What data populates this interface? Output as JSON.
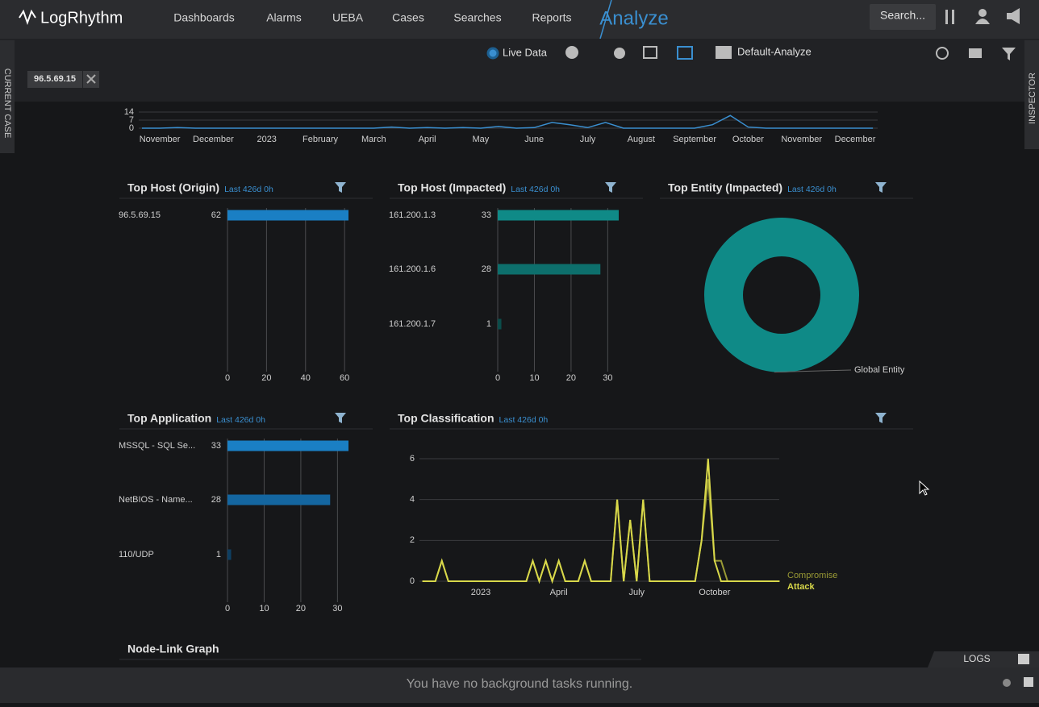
{
  "nav": {
    "brand": "LogRhythm",
    "items": [
      "Dashboards",
      "Alarms",
      "UEBA",
      "Cases",
      "Searches",
      "Reports"
    ],
    "active": "Analyze",
    "search": "Search..."
  },
  "side_tabs": {
    "left": "CURRENT CASE",
    "right": "INSPECTOR"
  },
  "toolbar": {
    "live": "Live Data",
    "layout": "Default-Analyze"
  },
  "filter_chip": "96.5.69.15",
  "timeline": {
    "type": "line",
    "color": "#3a8fd0",
    "ylim": [
      0,
      14
    ],
    "yticks": [
      0,
      7,
      14
    ],
    "categories": [
      null,
      "November",
      null,
      null,
      "December",
      null,
      null,
      "2023",
      null,
      null,
      "February",
      null,
      null,
      "March",
      null,
      null,
      "April",
      null,
      null,
      "May",
      null,
      null,
      "June",
      null,
      null,
      "July",
      null,
      null,
      "August",
      null,
      null,
      "September",
      null,
      null,
      "October",
      null,
      null,
      "November",
      null,
      null,
      "December",
      null
    ],
    "values": [
      0,
      0,
      0.5,
      0,
      0,
      0,
      0,
      0,
      0,
      0,
      0,
      0,
      0,
      0,
      1,
      0,
      0.5,
      0,
      0.5,
      0,
      1.5,
      0,
      0.5,
      5,
      3,
      0.5,
      5,
      0,
      0,
      0,
      0,
      0,
      3,
      11,
      1,
      0,
      0,
      0,
      0,
      0,
      0,
      0
    ]
  },
  "panels": [
    {
      "title": "Top Host (Origin)",
      "subtitle": "Last 426d 0h",
      "chart": {
        "type": "bar",
        "categories": [
          "96.5.69.15"
        ],
        "values": [
          62
        ],
        "colors": [
          "#1a7fc4"
        ],
        "xlim": [
          0,
          62
        ],
        "xticks": [
          0,
          20,
          40,
          60
        ]
      }
    },
    {
      "title": "Top Host (Impacted)",
      "subtitle": "Last 426d 0h",
      "chart": {
        "type": "bar",
        "categories": [
          "161.200.1.3",
          "161.200.1.6",
          "161.200.1.7"
        ],
        "values": [
          33,
          28,
          1
        ],
        "colors": [
          "#0f8a87",
          "#0d6f6c",
          "#0b4c4a"
        ],
        "xlim": [
          0,
          33
        ],
        "xticks": [
          0,
          10,
          20,
          30
        ]
      }
    },
    {
      "title": "Top Entity (Impacted)",
      "subtitle": "Last 426d 0h",
      "chart": {
        "type": "pie",
        "donut": true,
        "categories": [
          "Global Entity"
        ],
        "values": [
          62
        ],
        "colors": [
          "#0f8a87"
        ]
      }
    },
    {
      "title": "Top Application",
      "subtitle": "Last 426d 0h",
      "chart": {
        "type": "bar",
        "categories": [
          "MSSQL - SQL Se...",
          "NetBIOS - Name...",
          "110/UDP"
        ],
        "values": [
          33,
          28,
          1
        ],
        "colors": [
          "#1a7fc4",
          "#1466a0",
          "#0e3f62"
        ],
        "xlim": [
          0,
          33
        ],
        "xticks": [
          0,
          10,
          20,
          30
        ]
      }
    },
    {
      "title": "Top Classification",
      "subtitle": "Last 426d 0h",
      "chart": {
        "type": "line",
        "ylim": [
          0,
          6
        ],
        "yticks": [
          0,
          2,
          4,
          6
        ],
        "categories": [
          null,
          null,
          null,
          null,
          null,
          null,
          null,
          null,
          null,
          "2023",
          null,
          null,
          null,
          null,
          null,
          null,
          null,
          null,
          null,
          null,
          null,
          "April",
          null,
          null,
          null,
          null,
          null,
          null,
          null,
          null,
          null,
          null,
          null,
          "July",
          null,
          null,
          null,
          null,
          null,
          null,
          null,
          null,
          null,
          null,
          null,
          "October",
          null,
          null,
          null,
          null,
          null,
          null,
          null,
          null,
          null,
          null
        ],
        "series": [
          {
            "name": "Compromise",
            "color": "#9a9a35",
            "values": [
              0,
              0,
              0,
              1,
              0,
              0,
              0,
              0,
              0,
              0,
              0,
              0,
              0,
              0,
              0,
              0,
              0,
              1,
              0,
              1,
              0,
              1,
              0,
              0,
              0,
              1,
              0,
              0,
              0,
              0,
              4,
              0,
              3,
              0,
              4,
              0,
              0,
              0,
              0,
              0,
              0,
              0,
              0,
              2,
              5,
              1,
              1,
              0,
              0,
              0,
              0,
              0,
              0,
              0,
              0,
              0
            ]
          },
          {
            "name": "Attack",
            "color": "#d8d84a",
            "values": [
              0,
              0,
              0,
              1,
              0,
              0,
              0,
              0,
              0,
              0,
              0,
              0,
              0,
              0,
              0,
              0,
              0,
              1,
              0,
              1,
              0,
              1,
              0,
              0,
              0,
              1,
              0,
              0,
              0,
              0,
              4,
              0,
              3,
              0,
              4,
              0,
              0,
              0,
              0,
              0,
              0,
              0,
              0,
              2,
              6,
              1,
              0,
              0,
              0,
              0,
              0,
              0,
              0,
              0,
              0,
              0
            ]
          }
        ]
      }
    }
  ],
  "node_link": {
    "title": "Node-Link Graph"
  },
  "logs": "LOGS",
  "status": "You have no background tasks running."
}
